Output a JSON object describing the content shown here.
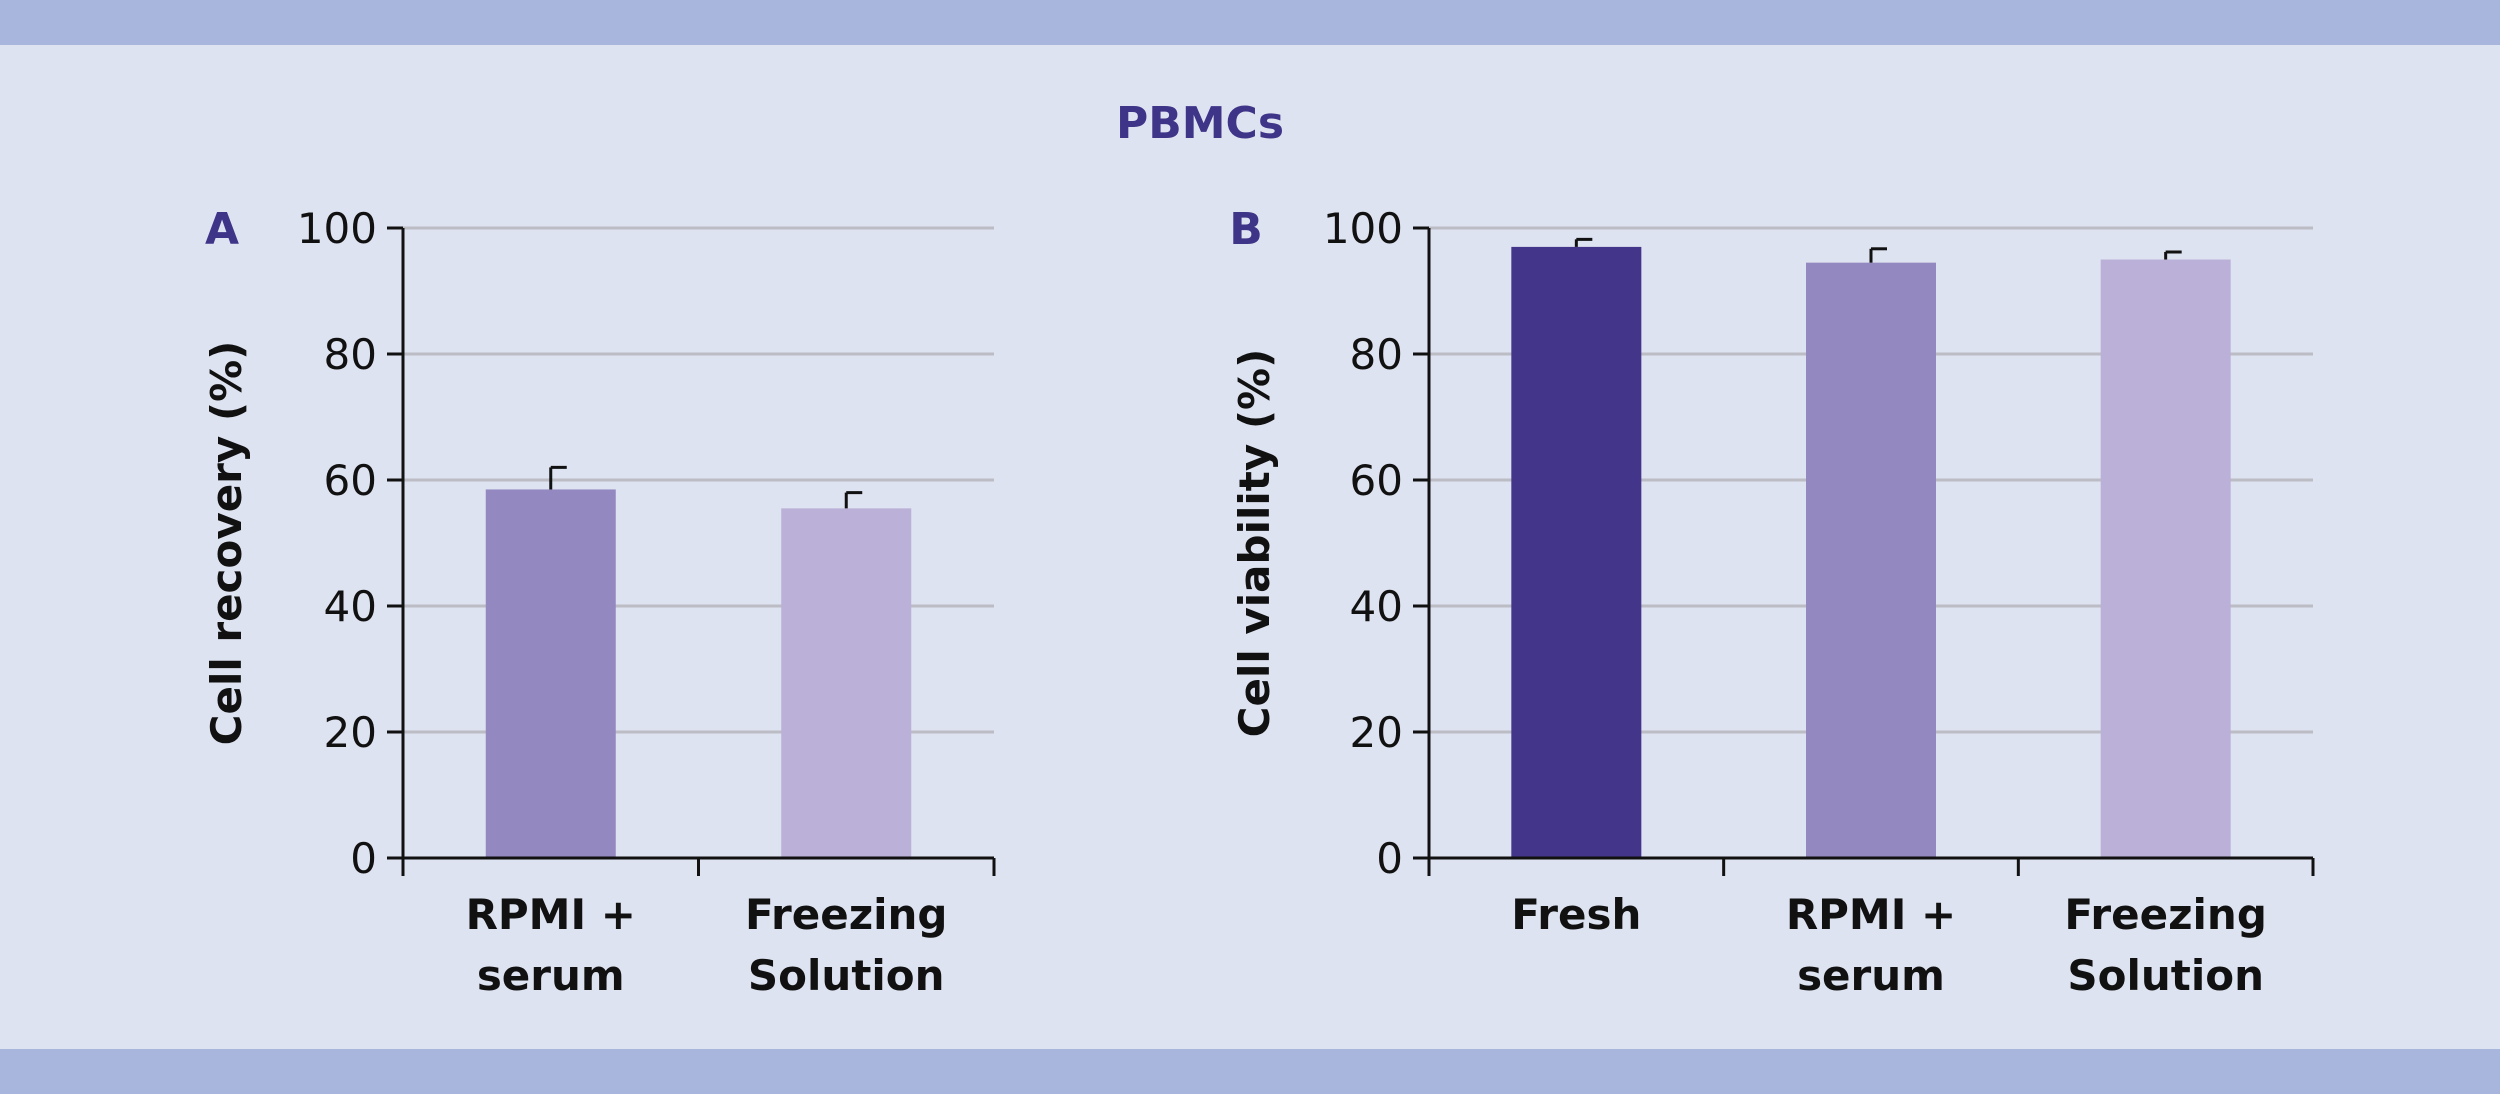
{
  "figure": {
    "title": "PBMCs",
    "colors": {
      "background": "#dee3f1",
      "band": "#a8b5dc",
      "title": "#3e3488",
      "grid": "#bcbcc4",
      "axis": "#111111"
    }
  },
  "chart_data": [
    {
      "type": "bar",
      "panel_label": "A",
      "title": "",
      "xlabel": "",
      "ylabel": "Cell recovery (%)",
      "ylim": [
        0,
        100
      ],
      "yticks": [
        0,
        20,
        40,
        60,
        80,
        100
      ],
      "grid": true,
      "categories": [
        [
          "RPMI +",
          "serum"
        ],
        [
          "Freezing",
          "Solution"
        ]
      ],
      "values": [
        58.5,
        55.5
      ],
      "error": [
        3.5,
        2.5
      ],
      "colors": [
        "#9488c0",
        "#bbb0d7"
      ]
    },
    {
      "type": "bar",
      "panel_label": "B",
      "title": "",
      "xlabel": "",
      "ylabel": "Cell viability (%)",
      "ylim": [
        0,
        100
      ],
      "yticks": [
        0,
        20,
        40,
        60,
        80,
        100
      ],
      "grid": true,
      "categories": [
        [
          "Fresh"
        ],
        [
          "RPMI +",
          "serum"
        ],
        [
          "Freezing",
          "Solution"
        ]
      ],
      "values": [
        97,
        94.5,
        95
      ],
      "error": [
        1.2,
        2.2,
        1.2
      ],
      "colors": [
        "#42358a",
        "#9488c0",
        "#bbb0d7"
      ]
    }
  ]
}
